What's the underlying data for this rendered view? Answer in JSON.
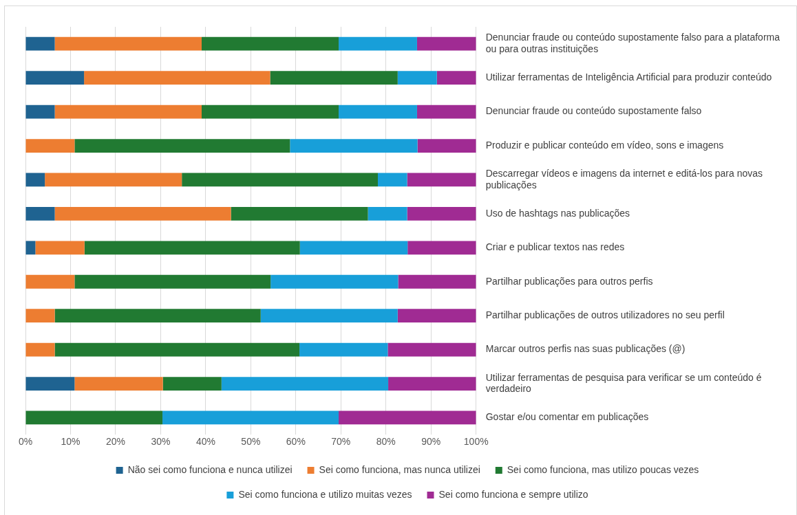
{
  "chart_data": {
    "type": "bar",
    "orientation": "horizontal",
    "stacked": true,
    "categories": [
      "Denunciar fraude ou conteúdo supostamente falso para a plataforma ou para outras instituições",
      "Utilizar ferramentas de Inteligência Artificial para produzir conteúdo",
      "Denunciar fraude ou conteúdo supostamente falso",
      "Produzir e publicar conteúdo em vídeo, sons e imagens",
      "Descarregar vídeos e imagens da internet e editá-los para novas publicações",
      "Uso de hashtags nas publicações",
      "Criar e publicar textos nas redes",
      "Partilhar publicações para outros perfis",
      "Partilhar publicações de outros utilizadores no seu perfil",
      "Marcar outros perfis nas suas publicações (@)",
      "Utilizar ferramentas de pesquisa para verificar se um conteúdo é verdadeiro",
      "Gostar e/ou comentar em publicações"
    ],
    "series": [
      {
        "name": "Não sei como funciona e nunca utilizei",
        "color": "#1f6391",
        "values": [
          6.5,
          13,
          6.5,
          0,
          4.3,
          6.5,
          2.2,
          0,
          0,
          0,
          10.9,
          0
        ]
      },
      {
        "name": "Sei como funciona, mas nunca utilizei",
        "color": "#ed7d31",
        "values": [
          32.6,
          41.3,
          32.6,
          10.9,
          30.4,
          39.1,
          10.9,
          10.9,
          6.5,
          6.5,
          19.6,
          0
        ]
      },
      {
        "name": "Sei como funciona, mas utilizo poucas vezes",
        "color": "#217a32",
        "values": [
          30.4,
          28.3,
          30.4,
          47.8,
          43.5,
          30.4,
          47.8,
          43.5,
          45.7,
          54.3,
          13,
          30.4
        ]
      },
      {
        "name": "Sei como funciona e utilizo muitas vezes",
        "color": "#189fd9",
        "values": [
          17.4,
          8.7,
          17.4,
          28.3,
          6.5,
          8.7,
          23.9,
          28.3,
          30.4,
          19.6,
          37,
          39.1
        ]
      },
      {
        "name": "Sei como funciona e sempre utilizo",
        "color": "#a02b93",
        "values": [
          13.1,
          8.7,
          13.1,
          13,
          15.3,
          15.3,
          15.2,
          17.3,
          17.4,
          19.6,
          19.5,
          30.5
        ]
      }
    ],
    "xlim": [
      0,
      100
    ],
    "xticks": [
      {
        "value": 0,
        "label": "0%"
      },
      {
        "value": 10,
        "label": "10%"
      },
      {
        "value": 20,
        "label": "20%"
      },
      {
        "value": 30,
        "label": "30%"
      },
      {
        "value": 40,
        "label": "40%"
      },
      {
        "value": 50,
        "label": "50%"
      },
      {
        "value": 60,
        "label": "60%"
      },
      {
        "value": 70,
        "label": "70%"
      },
      {
        "value": 80,
        "label": "80%"
      },
      {
        "value": 90,
        "label": "90%"
      },
      {
        "value": 100,
        "label": "100%"
      }
    ],
    "grid": "x",
    "legend": "bottom"
  }
}
